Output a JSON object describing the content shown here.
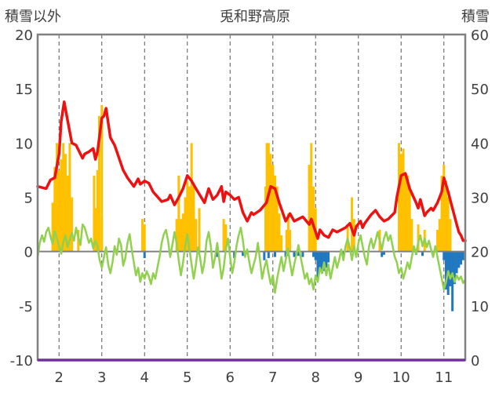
{
  "chart_data": {
    "type": "combo",
    "title": "兎和野高原",
    "left_axis_label": "積雪以外",
    "right_axis_label": "積雪",
    "left_ylim": [
      -10,
      20
    ],
    "left_yticks": [
      -10,
      -5,
      0,
      5,
      10,
      15,
      20
    ],
    "right_ylim": [
      0,
      60
    ],
    "right_yticks": [
      0,
      10,
      20,
      30,
      40,
      50,
      60
    ],
    "x_range": [
      1.5,
      11.5
    ],
    "x_ticks": [
      2,
      3,
      4,
      5,
      6,
      7,
      8,
      9,
      10,
      11
    ],
    "grid": "vertical-dashed",
    "colors": {
      "red_line": "#ee1111",
      "green_line": "#92d050",
      "bars_positive": "#ffc000",
      "bars_negative": "#1f78c0",
      "baseline": "#7030a0",
      "frame": "#808080"
    },
    "red_line": [
      [
        1.5,
        6.0
      ],
      [
        1.7,
        5.8
      ],
      [
        1.8,
        6.6
      ],
      [
        1.9,
        6.8
      ],
      [
        2.0,
        9.0
      ],
      [
        2.05,
        12.0
      ],
      [
        2.12,
        13.8
      ],
      [
        2.18,
        12.5
      ],
      [
        2.3,
        10.0
      ],
      [
        2.4,
        9.8
      ],
      [
        2.55,
        8.6
      ],
      [
        2.6,
        9.0
      ],
      [
        2.7,
        9.2
      ],
      [
        2.8,
        9.5
      ],
      [
        2.85,
        8.5
      ],
      [
        2.9,
        9.2
      ],
      [
        3.0,
        12.3
      ],
      [
        3.05,
        12.5
      ],
      [
        3.1,
        13.2
      ],
      [
        3.2,
        10.5
      ],
      [
        3.3,
        9.8
      ],
      [
        3.5,
        7.5
      ],
      [
        3.6,
        6.8
      ],
      [
        3.75,
        6.0
      ],
      [
        3.85,
        6.7
      ],
      [
        3.9,
        6.2
      ],
      [
        4.0,
        6.5
      ],
      [
        4.1,
        6.3
      ],
      [
        4.2,
        5.5
      ],
      [
        4.4,
        4.6
      ],
      [
        4.55,
        4.8
      ],
      [
        4.6,
        5.2
      ],
      [
        4.7,
        4.3
      ],
      [
        4.8,
        5.0
      ],
      [
        4.9,
        5.8
      ],
      [
        5.0,
        7.0
      ],
      [
        5.1,
        6.5
      ],
      [
        5.2,
        5.8
      ],
      [
        5.4,
        4.5
      ],
      [
        5.5,
        5.8
      ],
      [
        5.6,
        4.8
      ],
      [
        5.7,
        5.2
      ],
      [
        5.8,
        6.0
      ],
      [
        5.85,
        4.6
      ],
      [
        5.9,
        5.5
      ],
      [
        6.0,
        5.2
      ],
      [
        6.1,
        4.8
      ],
      [
        6.2,
        5.0
      ],
      [
        6.3,
        3.6
      ],
      [
        6.4,
        2.8
      ],
      [
        6.5,
        3.6
      ],
      [
        6.55,
        3.4
      ],
      [
        6.7,
        3.8
      ],
      [
        6.85,
        4.5
      ],
      [
        6.95,
        6.0
      ],
      [
        7.05,
        5.8
      ],
      [
        7.15,
        4.5
      ],
      [
        7.3,
        2.8
      ],
      [
        7.4,
        3.5
      ],
      [
        7.5,
        2.8
      ],
      [
        7.7,
        3.2
      ],
      [
        7.85,
        2.5
      ],
      [
        7.9,
        3.0
      ],
      [
        8.0,
        1.8
      ],
      [
        8.05,
        1.2
      ],
      [
        8.1,
        2.0
      ],
      [
        8.2,
        1.5
      ],
      [
        8.3,
        1.3
      ],
      [
        8.4,
        2.0
      ],
      [
        8.5,
        1.8
      ],
      [
        8.7,
        2.2
      ],
      [
        8.8,
        2.6
      ],
      [
        8.9,
        1.5
      ],
      [
        8.95,
        2.3
      ],
      [
        9.05,
        2.8
      ],
      [
        9.1,
        2.2
      ],
      [
        9.15,
        2.6
      ],
      [
        9.3,
        3.4
      ],
      [
        9.4,
        3.8
      ],
      [
        9.5,
        3.2
      ],
      [
        9.6,
        2.8
      ],
      [
        9.7,
        3.0
      ],
      [
        9.8,
        3.4
      ],
      [
        9.85,
        3.6
      ],
      [
        9.9,
        5.0
      ],
      [
        10.0,
        7.0
      ],
      [
        10.1,
        7.2
      ],
      [
        10.2,
        5.8
      ],
      [
        10.35,
        4.5
      ],
      [
        10.4,
        4.0
      ],
      [
        10.45,
        4.8
      ],
      [
        10.55,
        3.3
      ],
      [
        10.6,
        3.6
      ],
      [
        10.7,
        4.0
      ],
      [
        10.75,
        3.8
      ],
      [
        10.85,
        4.5
      ],
      [
        10.95,
        5.5
      ],
      [
        11.0,
        6.8
      ],
      [
        11.1,
        5.5
      ],
      [
        11.2,
        4.0
      ],
      [
        11.3,
        2.5
      ],
      [
        11.35,
        1.8
      ],
      [
        11.4,
        1.5
      ],
      [
        11.45,
        1.0
      ],
      [
        11.5,
        1.0
      ]
    ],
    "green_line": [
      [
        1.5,
        -0.5
      ],
      [
        1.55,
        0.8
      ],
      [
        1.6,
        1.5
      ],
      [
        1.65,
        0.9
      ],
      [
        1.7,
        1.8
      ],
      [
        1.75,
        2.2
      ],
      [
        1.8,
        1.4
      ],
      [
        1.85,
        0.7
      ],
      [
        1.9,
        1.9
      ],
      [
        1.95,
        1.2
      ],
      [
        2.0,
        0.5
      ],
      [
        2.05,
        -0.2
      ],
      [
        2.1,
        0.9
      ],
      [
        2.15,
        1.5
      ],
      [
        2.2,
        0.4
      ],
      [
        2.25,
        1.1
      ],
      [
        2.3,
        1.7
      ],
      [
        2.35,
        1.0
      ],
      [
        2.4,
        2.2
      ],
      [
        2.45,
        1.3
      ],
      [
        2.5,
        0.6
      ],
      [
        2.55,
        2.5
      ],
      [
        2.6,
        2.2
      ],
      [
        2.65,
        1.5
      ],
      [
        2.7,
        0.8
      ],
      [
        2.75,
        1.2
      ],
      [
        2.8,
        0.3
      ],
      [
        2.85,
        1.0
      ],
      [
        2.9,
        0.5
      ],
      [
        2.95,
        -0.8
      ],
      [
        3.0,
        -1.5
      ],
      [
        3.05,
        -0.5
      ],
      [
        3.1,
        0.4
      ],
      [
        3.15,
        -1.2
      ],
      [
        3.2,
        -2.0
      ],
      [
        3.25,
        -1.0
      ],
      [
        3.3,
        0.5
      ],
      [
        3.35,
        -0.3
      ],
      [
        3.4,
        1.2
      ],
      [
        3.45,
        0.6
      ],
      [
        3.5,
        -1.3
      ],
      [
        3.55,
        -0.6
      ],
      [
        3.6,
        0.8
      ],
      [
        3.65,
        1.6
      ],
      [
        3.7,
        0.2
      ],
      [
        3.75,
        -1.0
      ],
      [
        3.8,
        -2.2
      ],
      [
        3.85,
        -1.5
      ],
      [
        3.9,
        -2.8
      ],
      [
        3.95,
        -2.0
      ],
      [
        4.0,
        -2.5
      ],
      [
        4.05,
        -1.8
      ],
      [
        4.1,
        -2.3
      ],
      [
        4.15,
        -3.0
      ],
      [
        4.2,
        -2.0
      ],
      [
        4.25,
        -2.5
      ],
      [
        4.3,
        -1.5
      ],
      [
        4.35,
        -0.5
      ],
      [
        4.4,
        0.8
      ],
      [
        4.45,
        1.6
      ],
      [
        4.5,
        2.0
      ],
      [
        4.55,
        1.0
      ],
      [
        4.6,
        -0.5
      ],
      [
        4.65,
        0.6
      ],
      [
        4.7,
        1.8
      ],
      [
        4.75,
        0.8
      ],
      [
        4.8,
        -0.8
      ],
      [
        4.85,
        -2.2
      ],
      [
        4.9,
        -1.0
      ],
      [
        4.95,
        0.5
      ],
      [
        5.0,
        1.6
      ],
      [
        5.05,
        0.2
      ],
      [
        5.1,
        -1.2
      ],
      [
        5.15,
        -2.5
      ],
      [
        5.2,
        -1.2
      ],
      [
        5.25,
        0.4
      ],
      [
        5.3,
        -0.6
      ],
      [
        5.35,
        -2.0
      ],
      [
        5.4,
        -1.0
      ],
      [
        5.45,
        1.0
      ],
      [
        5.5,
        1.8
      ],
      [
        5.55,
        0.5
      ],
      [
        5.6,
        -1.5
      ],
      [
        5.65,
        -0.5
      ],
      [
        5.7,
        0.8
      ],
      [
        5.75,
        -0.8
      ],
      [
        5.8,
        -2.5
      ],
      [
        5.85,
        -1.5
      ],
      [
        5.9,
        0.2
      ],
      [
        5.95,
        1.2
      ],
      [
        6.0,
        -0.5
      ],
      [
        6.05,
        -2.0
      ],
      [
        6.1,
        -1.0
      ],
      [
        6.15,
        0.5
      ],
      [
        6.2,
        1.5
      ],
      [
        6.25,
        2.2
      ],
      [
        6.3,
        1.0
      ],
      [
        6.35,
        -0.5
      ],
      [
        6.4,
        0.2
      ],
      [
        6.45,
        -1.0
      ],
      [
        6.5,
        -2.0
      ],
      [
        6.55,
        -1.2
      ],
      [
        6.6,
        -0.5
      ],
      [
        6.65,
        0.8
      ],
      [
        6.7,
        -0.8
      ],
      [
        6.75,
        -2.5
      ],
      [
        6.8,
        -1.5
      ],
      [
        6.85,
        -0.8
      ],
      [
        6.9,
        -2.0
      ],
      [
        6.95,
        -3.0
      ],
      [
        7.0,
        -2.2
      ],
      [
        7.05,
        -3.8
      ],
      [
        7.1,
        -2.5
      ],
      [
        7.15,
        -1.5
      ],
      [
        7.2,
        -0.5
      ],
      [
        7.25,
        -1.8
      ],
      [
        7.3,
        -0.8
      ],
      [
        7.35,
        0.3
      ],
      [
        7.4,
        -1.0
      ],
      [
        7.45,
        -2.2
      ],
      [
        7.5,
        -1.2
      ],
      [
        7.55,
        -0.3
      ],
      [
        7.6,
        0.6
      ],
      [
        7.65,
        -0.5
      ],
      [
        7.7,
        -1.5
      ],
      [
        7.75,
        -2.5
      ],
      [
        7.8,
        -2.0
      ],
      [
        7.85,
        -3.0
      ],
      [
        7.9,
        -2.5
      ],
      [
        7.95,
        -3.5
      ],
      [
        8.0,
        -2.2
      ],
      [
        8.05,
        -2.8
      ],
      [
        8.1,
        -1.5
      ],
      [
        8.15,
        -2.0
      ],
      [
        8.2,
        -1.0
      ],
      [
        8.25,
        -2.2
      ],
      [
        8.3,
        -1.2
      ],
      [
        8.35,
        -2.5
      ],
      [
        8.4,
        -1.5
      ],
      [
        8.45,
        -0.5
      ],
      [
        8.5,
        -1.5
      ],
      [
        8.55,
        -0.8
      ],
      [
        8.6,
        0.2
      ],
      [
        8.65,
        -0.8
      ],
      [
        8.7,
        0.5
      ],
      [
        8.75,
        1.2
      ],
      [
        8.8,
        0.3
      ],
      [
        8.85,
        -0.8
      ],
      [
        8.9,
        0.5
      ],
      [
        8.95,
        -0.5
      ],
      [
        9.0,
        0.8
      ],
      [
        9.05,
        1.5
      ],
      [
        9.1,
        0.5
      ],
      [
        9.15,
        -0.5
      ],
      [
        9.2,
        -1.2
      ],
      [
        9.25,
        0.5
      ],
      [
        9.3,
        1.2
      ],
      [
        9.35,
        0.3
      ],
      [
        9.4,
        1.0
      ],
      [
        9.45,
        1.8
      ],
      [
        9.5,
        1.0
      ],
      [
        9.55,
        0.2
      ],
      [
        9.6,
        1.2
      ],
      [
        9.65,
        1.8
      ],
      [
        9.7,
        1.0
      ],
      [
        9.75,
        1.5
      ],
      [
        9.8,
        0.5
      ],
      [
        9.85,
        -0.5
      ],
      [
        9.9,
        -1.0
      ],
      [
        9.95,
        -2.0
      ],
      [
        10.0,
        -1.5
      ],
      [
        10.05,
        -2.5
      ],
      [
        10.1,
        -1.8
      ],
      [
        10.15,
        -1.0
      ],
      [
        10.2,
        -1.6
      ],
      [
        10.25,
        -0.5
      ],
      [
        10.3,
        0.5
      ],
      [
        10.35,
        -0.2
      ],
      [
        10.4,
        0.8
      ],
      [
        10.45,
        1.5
      ],
      [
        10.5,
        0.5
      ],
      [
        10.55,
        1.2
      ],
      [
        10.6,
        0.4
      ],
      [
        10.65,
        1.0
      ],
      [
        10.7,
        0.2
      ],
      [
        10.75,
        -0.5
      ],
      [
        10.8,
        0.5
      ],
      [
        10.85,
        -0.5
      ],
      [
        10.9,
        -1.5
      ],
      [
        10.95,
        -2.5
      ],
      [
        11.0,
        -3.5
      ],
      [
        11.05,
        -2.8
      ],
      [
        11.1,
        -1.8
      ],
      [
        11.15,
        -2.5
      ],
      [
        11.2,
        -2.0
      ],
      [
        11.25,
        -2.8
      ],
      [
        11.3,
        -2.2
      ],
      [
        11.35,
        -2.6
      ],
      [
        11.4,
        -2.3
      ],
      [
        11.45,
        -2.9
      ],
      [
        11.5,
        -2.6
      ]
    ],
    "bars_positive": [
      [
        1.85,
        4.5
      ],
      [
        1.9,
        7.8
      ],
      [
        1.95,
        10.0
      ],
      [
        2.0,
        7.5
      ],
      [
        2.05,
        8.5
      ],
      [
        2.1,
        10.0
      ],
      [
        2.15,
        9.0
      ],
      [
        2.2,
        7.0
      ],
      [
        2.25,
        10.0
      ],
      [
        2.3,
        5.0
      ],
      [
        2.45,
        2.0
      ],
      [
        2.82,
        7.0
      ],
      [
        2.86,
        4.0
      ],
      [
        2.9,
        7.5
      ],
      [
        2.94,
        12.5
      ],
      [
        3.0,
        13.5
      ],
      [
        3.0,
        3.0
      ],
      [
        3.95,
        3.0
      ],
      [
        4.0,
        2.5
      ],
      [
        4.75,
        3.0
      ],
      [
        4.8,
        7.0
      ],
      [
        4.85,
        3.0
      ],
      [
        4.9,
        3.5
      ],
      [
        4.95,
        5.0
      ],
      [
        5.0,
        6.5
      ],
      [
        5.05,
        6.0
      ],
      [
        5.1,
        10.0
      ],
      [
        5.15,
        6.0
      ],
      [
        5.2,
        3.0
      ],
      [
        5.28,
        4.0
      ],
      [
        5.85,
        3.0
      ],
      [
        5.9,
        2.5
      ],
      [
        6.83,
        6.0
      ],
      [
        6.86,
        10.0
      ],
      [
        6.9,
        10.0
      ],
      [
        6.95,
        9.0
      ],
      [
        7.0,
        8.0
      ],
      [
        7.05,
        7.0
      ],
      [
        7.1,
        6.0
      ],
      [
        7.15,
        3.5
      ],
      [
        7.2,
        1.5
      ],
      [
        7.32,
        2.0
      ],
      [
        7.36,
        3.5
      ],
      [
        7.4,
        2.0
      ],
      [
        7.85,
        8.0
      ],
      [
        7.9,
        10.0
      ],
      [
        7.95,
        6.0
      ],
      [
        8.0,
        4.0
      ],
      [
        8.75,
        2.5
      ],
      [
        8.85,
        5.0
      ],
      [
        8.9,
        3.0
      ],
      [
        9.5,
        2.0
      ],
      [
        9.95,
        10.0
      ],
      [
        10.0,
        9.0
      ],
      [
        10.05,
        9.5
      ],
      [
        10.1,
        7.0
      ],
      [
        10.15,
        7.0
      ],
      [
        10.2,
        6.0
      ],
      [
        10.25,
        3.0
      ],
      [
        10.4,
        2.5
      ],
      [
        10.55,
        2.0
      ],
      [
        10.85,
        2.0
      ],
      [
        10.9,
        3.0
      ],
      [
        10.95,
        7.0
      ],
      [
        11.0,
        8.0
      ],
      [
        11.05,
        6.5
      ],
      [
        11.1,
        5.0
      ],
      [
        11.15,
        3.0
      ]
    ],
    "bars_negative": [
      [
        4.0,
        -0.6
      ],
      [
        5.7,
        -0.5
      ],
      [
        6.1,
        -0.6
      ],
      [
        6.3,
        -0.4
      ],
      [
        6.8,
        -0.8
      ],
      [
        6.9,
        -0.6
      ],
      [
        7.05,
        -0.5
      ],
      [
        7.3,
        -0.5
      ],
      [
        7.35,
        -0.4
      ],
      [
        7.5,
        -0.5
      ],
      [
        7.6,
        -0.4
      ],
      [
        7.7,
        -0.5
      ],
      [
        7.95,
        -0.5
      ],
      [
        8.0,
        -0.8
      ],
      [
        8.05,
        -2.5
      ],
      [
        8.1,
        -1.5
      ],
      [
        8.15,
        -2.0
      ],
      [
        8.2,
        -1.8
      ],
      [
        8.25,
        -1.5
      ],
      [
        8.3,
        -1.0
      ],
      [
        8.65,
        -0.5
      ],
      [
        9.55,
        -0.5
      ],
      [
        9.6,
        -0.3
      ],
      [
        10.35,
        -0.3
      ],
      [
        10.5,
        -0.4
      ],
      [
        11.0,
        -0.8
      ],
      [
        11.05,
        -3.5
      ],
      [
        11.1,
        -4.0
      ],
      [
        11.15,
        -3.2
      ],
      [
        11.2,
        -5.5
      ],
      [
        11.25,
        -3.0
      ],
      [
        11.3,
        -2.0
      ],
      [
        11.35,
        -1.5
      ],
      [
        11.4,
        -1.2
      ],
      [
        11.45,
        -0.8
      ]
    ]
  }
}
